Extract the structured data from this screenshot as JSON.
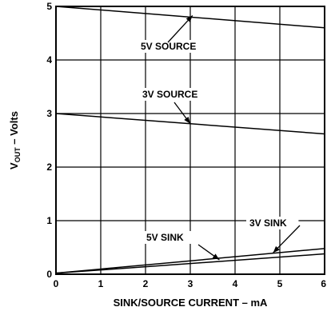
{
  "chart_data": {
    "type": "line",
    "xlabel": "SINK/SOURCE CURRENT – mA",
    "ylabel": {
      "main": "V",
      "subscript": "OUT",
      "suffix": " – Volts"
    },
    "xlim": [
      0,
      6
    ],
    "ylim": [
      0,
      5
    ],
    "xticks": [
      "0",
      "1",
      "2",
      "3",
      "4",
      "5",
      "6"
    ],
    "yticks": [
      "0",
      "1",
      "2",
      "3",
      "4",
      "5"
    ],
    "grid": true,
    "series": [
      {
        "name": "5V SOURCE",
        "x": [
          0,
          6
        ],
        "y": [
          5.0,
          4.6
        ]
      },
      {
        "name": "3V SOURCE",
        "x": [
          0,
          6
        ],
        "y": [
          3.0,
          2.62
        ]
      },
      {
        "name": "3V SINK",
        "x": [
          0,
          6
        ],
        "y": [
          0.02,
          0.48
        ]
      },
      {
        "name": "5V SINK",
        "x": [
          0,
          6
        ],
        "y": [
          0.02,
          0.38
        ]
      }
    ],
    "annotations": [
      {
        "label": "5V SOURCE",
        "x": 3.05,
        "y": 4.83
      },
      {
        "label": "3V SOURCE",
        "x": 3.0,
        "y": 2.81
      },
      {
        "label": "3V SINK",
        "x": 4.85,
        "y": 0.4
      },
      {
        "label": "5V SINK",
        "x": 3.65,
        "y": 0.27
      }
    ]
  }
}
